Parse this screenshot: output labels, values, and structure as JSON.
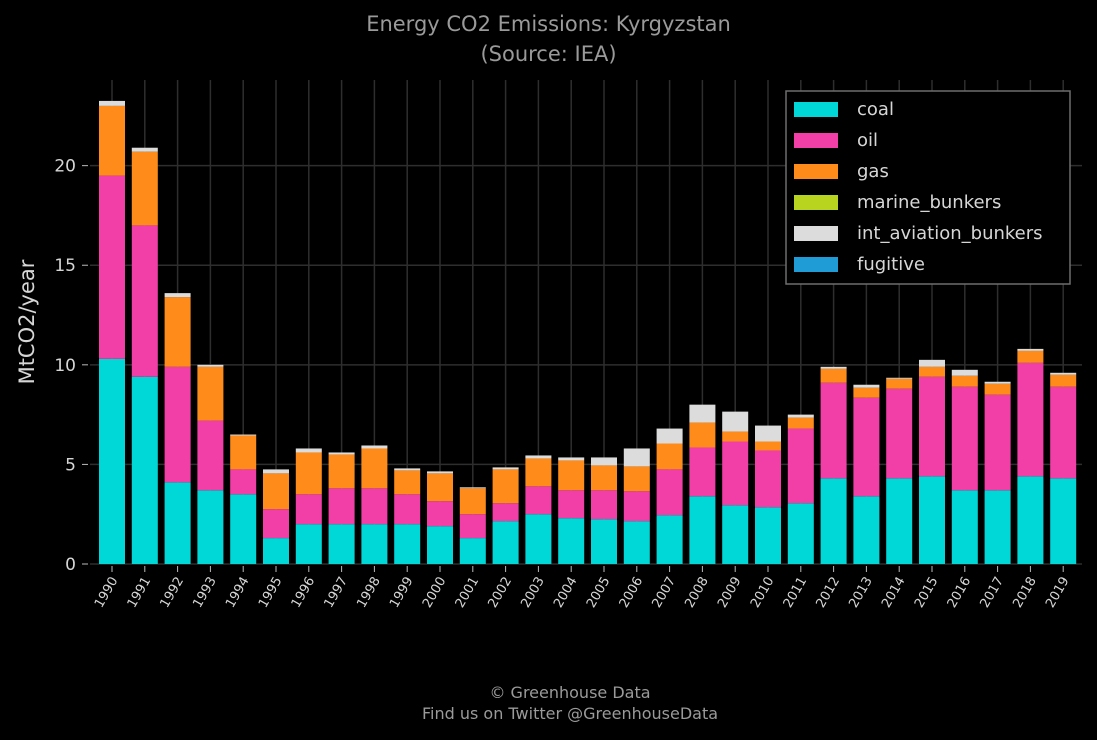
{
  "chart_data": {
    "type": "bar",
    "stacked": true,
    "title": "Energy CO2 Emissions: Kyrgyzstan",
    "subtitle": "(Source: IEA)",
    "xlabel": "",
    "ylabel": "MtCO2/year",
    "ylim": [
      0,
      24.3
    ],
    "yticks": [
      0,
      5,
      10,
      15,
      20
    ],
    "grid": true,
    "legend_position": "top-right",
    "categories": [
      "1990",
      "1991",
      "1992",
      "1993",
      "1994",
      "1995",
      "1996",
      "1997",
      "1998",
      "1999",
      "2000",
      "2001",
      "2002",
      "2003",
      "2004",
      "2005",
      "2006",
      "2007",
      "2008",
      "2009",
      "2010",
      "2011",
      "2012",
      "2013",
      "2014",
      "2015",
      "2016",
      "2017",
      "2018",
      "2019"
    ],
    "series": [
      {
        "name": "coal",
        "color": "#00d8d8",
        "values": [
          10.3,
          9.4,
          4.1,
          3.7,
          3.5,
          1.3,
          2.0,
          2.0,
          2.0,
          2.0,
          1.9,
          1.3,
          2.15,
          2.5,
          2.3,
          2.25,
          2.15,
          2.45,
          3.4,
          2.95,
          2.85,
          3.05,
          4.3,
          3.4,
          4.3,
          4.4,
          3.7,
          3.7,
          4.4,
          4.3
        ]
      },
      {
        "name": "oil",
        "color": "#f23fa8",
        "values": [
          9.2,
          7.6,
          5.8,
          3.5,
          1.25,
          1.45,
          1.5,
          1.8,
          1.8,
          1.5,
          1.25,
          1.2,
          0.9,
          1.4,
          1.4,
          1.45,
          1.5,
          2.3,
          2.45,
          3.2,
          2.85,
          3.75,
          4.8,
          4.95,
          4.5,
          5.0,
          5.2,
          4.8,
          5.7,
          4.6
        ]
      },
      {
        "name": "gas",
        "color": "#ff8c1a",
        "values": [
          3.5,
          3.7,
          3.5,
          2.7,
          1.7,
          1.8,
          2.1,
          1.7,
          2.0,
          1.2,
          1.4,
          1.3,
          1.7,
          1.4,
          1.5,
          1.25,
          1.25,
          1.3,
          1.25,
          0.5,
          0.45,
          0.55,
          0.7,
          0.5,
          0.5,
          0.5,
          0.55,
          0.55,
          0.6,
          0.6
        ]
      },
      {
        "name": "marine_bunkers",
        "color": "#b8d41e",
        "values": [
          0,
          0,
          0,
          0,
          0,
          0,
          0,
          0,
          0,
          0,
          0,
          0,
          0,
          0,
          0,
          0,
          0,
          0,
          0,
          0,
          0,
          0,
          0,
          0,
          0,
          0,
          0,
          0,
          0,
          0
        ]
      },
      {
        "name": "int_aviation_bunkers",
        "color": "#dcdcdc",
        "values": [
          0.25,
          0.2,
          0.2,
          0.1,
          0.05,
          0.2,
          0.2,
          0.1,
          0.15,
          0.1,
          0.1,
          0.05,
          0.1,
          0.15,
          0.15,
          0.4,
          0.9,
          0.75,
          0.9,
          1.0,
          0.8,
          0.15,
          0.1,
          0.15,
          0.05,
          0.35,
          0.3,
          0.1,
          0.1,
          0.1
        ]
      },
      {
        "name": "fugitive",
        "color": "#1f9bd6",
        "values": [
          0,
          0,
          0,
          0,
          0,
          0,
          0,
          0,
          0,
          0,
          0,
          0,
          0,
          0,
          0,
          0,
          0,
          0,
          0,
          0,
          0,
          0,
          0,
          0,
          0,
          0,
          0,
          0,
          0,
          0
        ]
      }
    ]
  },
  "footer": {
    "line1": "© Greenhouse Data",
    "line2": "Find us on Twitter @GreenhouseData"
  }
}
